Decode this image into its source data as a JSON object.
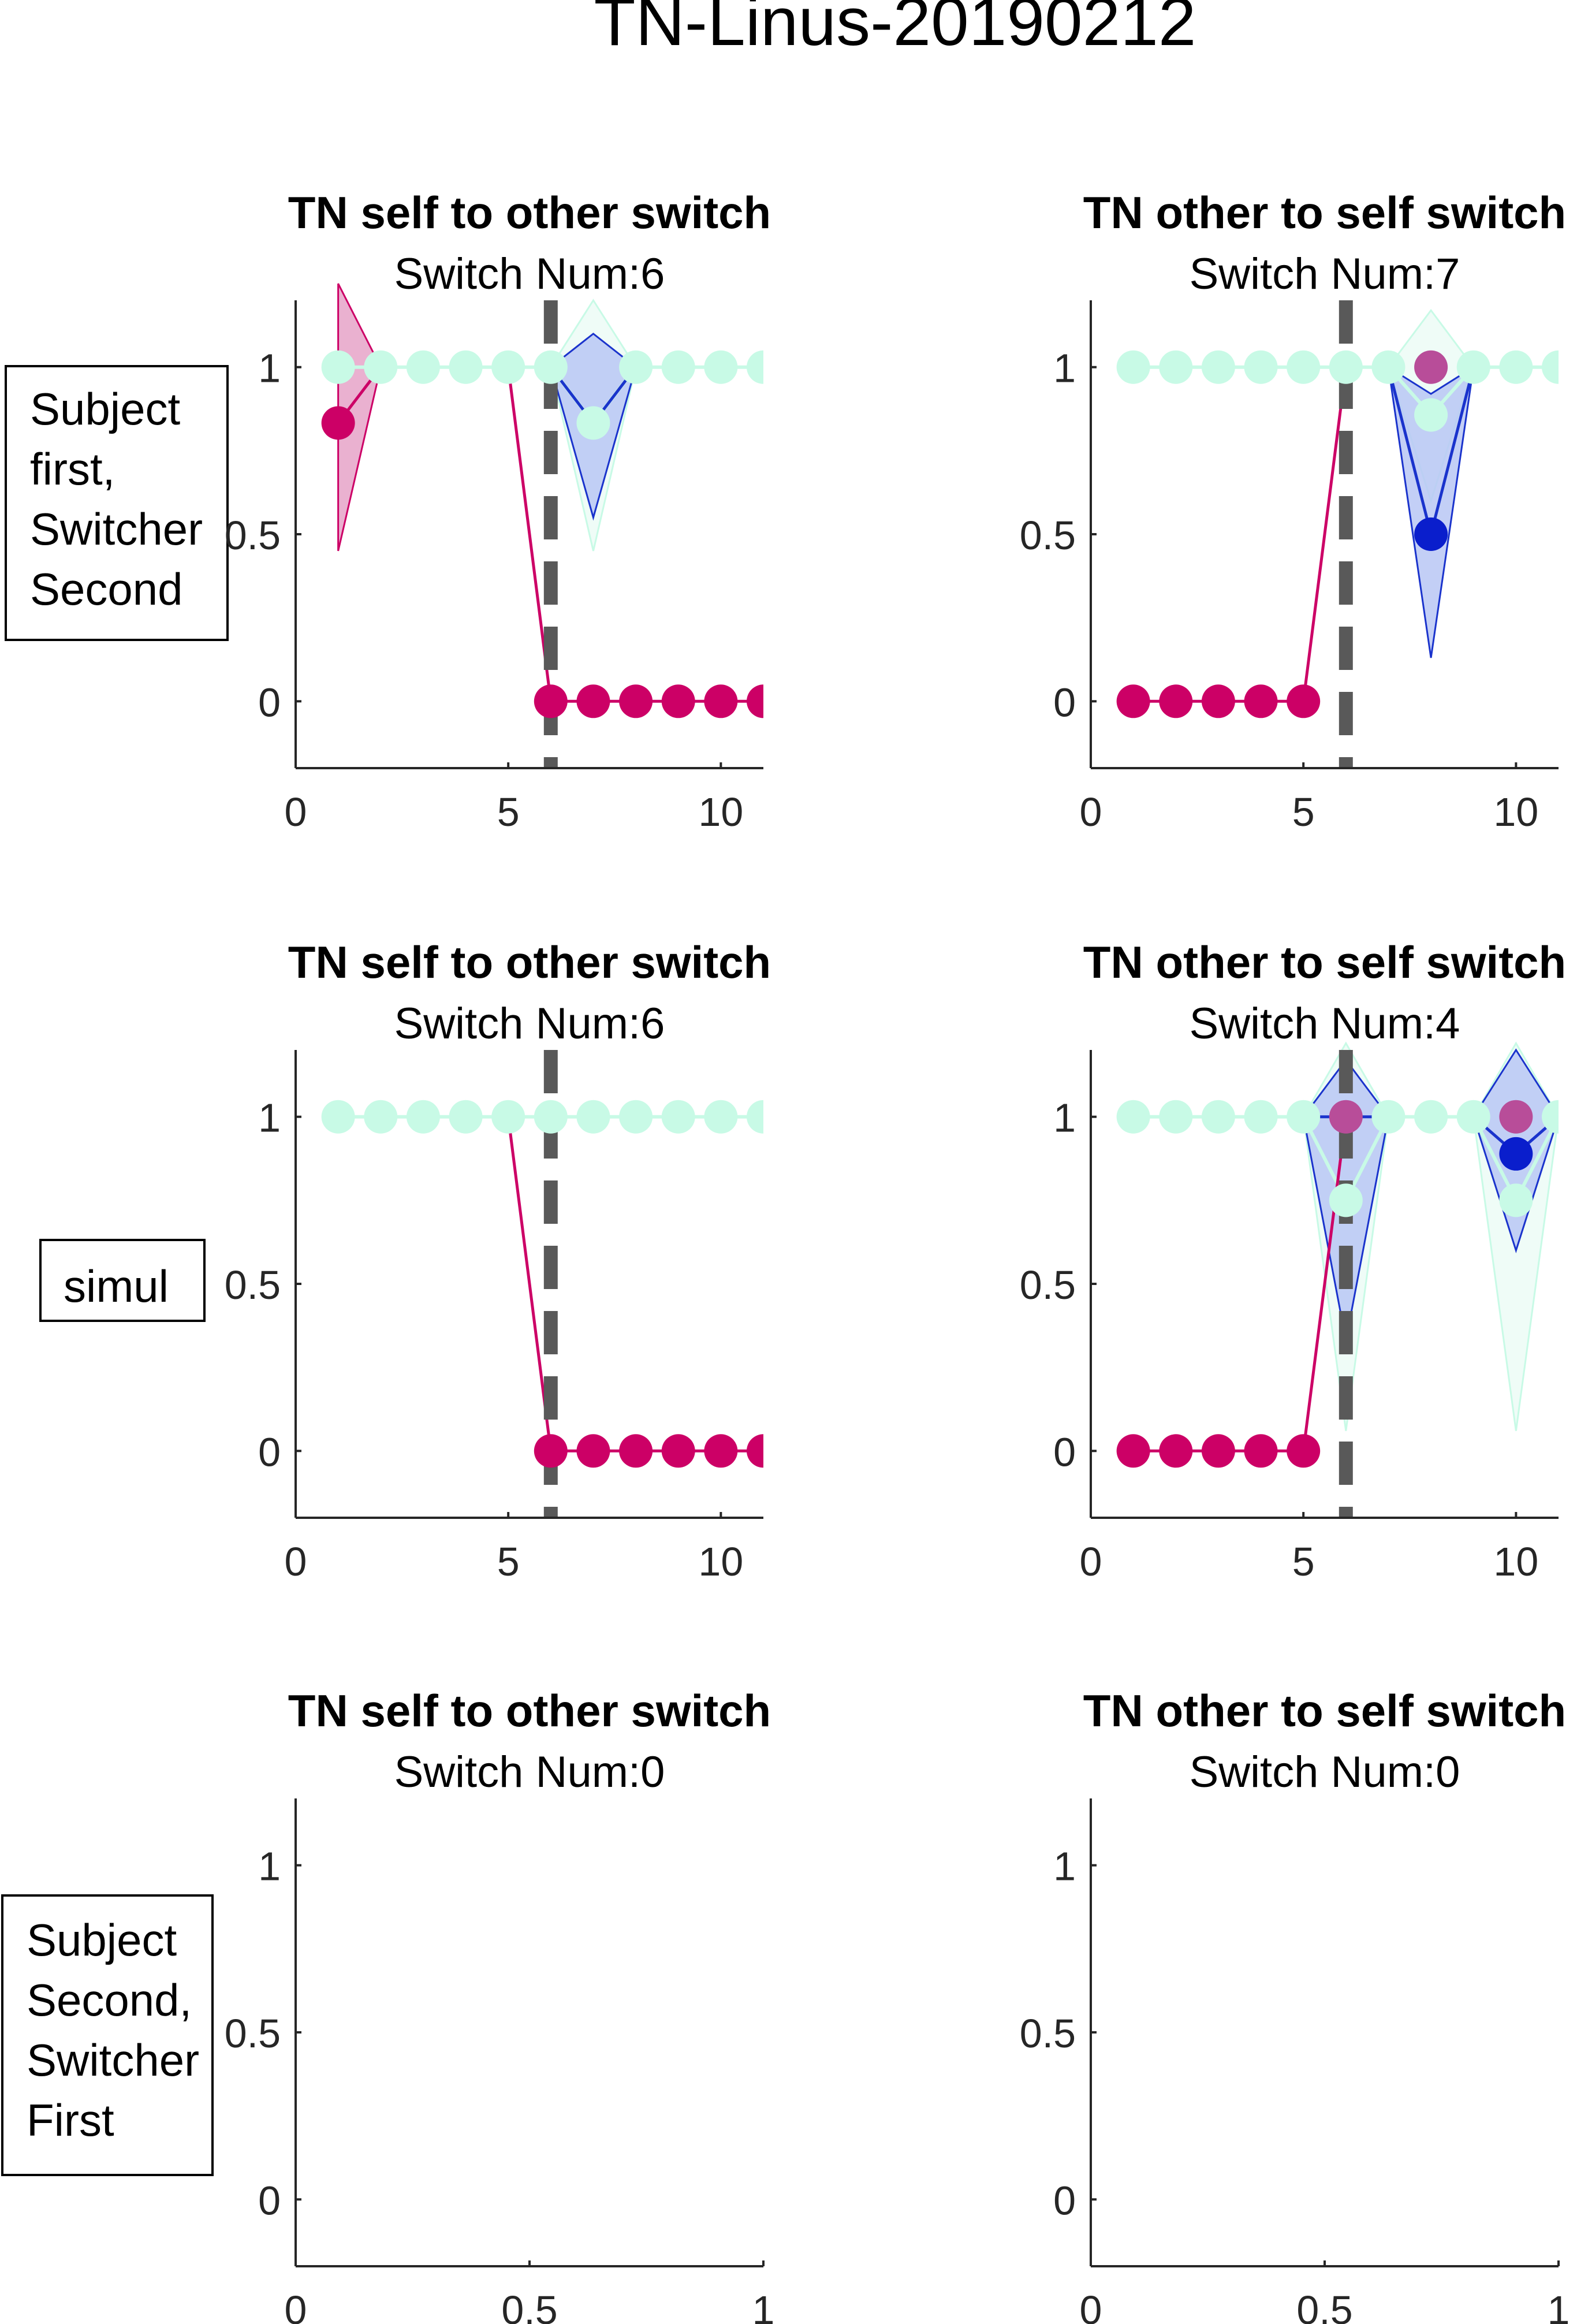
{
  "figure_title": "TN-Linus-20190212",
  "colors": {
    "self_line": "#cc0066",
    "self_fill": "#e6a3c8",
    "other_fill": "#b8c7f5",
    "other_line": "#1a33cc",
    "other_dot": "#0a1ecc",
    "partner": "#c8fae6",
    "partner_fill": "#e8fbf4",
    "overlap_dot": "#b84d99",
    "switch_line": "#595959",
    "axis": "#262626"
  },
  "row_labels": [
    {
      "lines": [
        "Subject",
        "first,",
        "Switcher",
        "Second"
      ]
    },
    {
      "lines": [
        "simul"
      ]
    },
    {
      "lines": [
        "Subject",
        "Second,",
        "Switcher",
        "First"
      ]
    }
  ],
  "chart_data": [
    {
      "type": "line",
      "row": 0,
      "col": 0,
      "title": "TN self to other switch",
      "subtitle": "Switch Num:6",
      "xlim": [
        0,
        11
      ],
      "ylim": [
        -0.2,
        1.2
      ],
      "xticks": [
        "0",
        "5",
        "10"
      ],
      "xtick_values": [
        0,
        5,
        10
      ],
      "yticks": [
        "0",
        "0.5",
        "1"
      ],
      "ytick_values": [
        0,
        0.5,
        1
      ],
      "switch_x": 6,
      "series": [
        {
          "role": "self",
          "x": [
            1,
            2,
            null,
            5,
            6,
            7,
            8,
            9,
            10,
            11
          ],
          "y": [
            0.833,
            1,
            null,
            1,
            0,
            0,
            0,
            0,
            0,
            0
          ],
          "markers": [
            1,
            6,
            7,
            8,
            9,
            10,
            11
          ],
          "band": {
            "x": [
              1,
              2
            ],
            "lo": [
              0.45,
              1
            ],
            "hi": [
              1.25,
              1
            ]
          }
        },
        {
          "role": "other",
          "x": [
            6,
            7,
            8
          ],
          "y": [
            1,
            0.833,
            1
          ],
          "markers": [],
          "band": {
            "x": [
              6,
              7,
              8
            ],
            "lo": [
              1,
              0.55,
              1
            ],
            "hi": [
              1,
              1.1,
              1
            ]
          }
        },
        {
          "role": "partner",
          "x": [
            1,
            2,
            3,
            4,
            5,
            6,
            7,
            8,
            9,
            10,
            11
          ],
          "y": [
            1,
            1,
            1,
            1,
            1,
            1,
            0.833,
            1,
            1,
            1,
            1
          ],
          "markers": [
            1,
            2,
            3,
            4,
            5,
            6,
            7,
            8,
            9,
            10,
            11
          ],
          "band": {
            "x": [
              6,
              7,
              8
            ],
            "lo": [
              1,
              0.45,
              1
            ],
            "hi": [
              1,
              1.2,
              1
            ]
          }
        }
      ],
      "overlap": []
    },
    {
      "type": "line",
      "row": 0,
      "col": 1,
      "title": "TN other to self switch",
      "subtitle": "Switch Num:7",
      "xlim": [
        0,
        11
      ],
      "ylim": [
        -0.2,
        1.2
      ],
      "xticks": [
        "0",
        "5",
        "10"
      ],
      "xtick_values": [
        0,
        5,
        10
      ],
      "yticks": [
        "0",
        "0.5",
        "1"
      ],
      "ytick_values": [
        0,
        0.5,
        1
      ],
      "switch_x": 6,
      "series": [
        {
          "role": "self",
          "x": [
            1,
            2,
            3,
            4,
            5,
            6
          ],
          "y": [
            0,
            0,
            0,
            0,
            0,
            1
          ],
          "markers": [
            1,
            2,
            3,
            4,
            5
          ],
          "band": null
        },
        {
          "role": "other",
          "x": [
            7,
            8,
            9
          ],
          "y": [
            1,
            0.5,
            1
          ],
          "markers": [
            8
          ],
          "band": {
            "x": [
              7,
              8,
              9
            ],
            "lo": [
              1,
              0.13,
              1
            ],
            "hi": [
              1,
              0.92,
              1
            ]
          }
        },
        {
          "role": "partner",
          "x": [
            1,
            2,
            3,
            4,
            5,
            6,
            7,
            8,
            9,
            10,
            11
          ],
          "y": [
            1,
            1,
            1,
            1,
            1,
            1,
            1,
            0.857,
            1,
            1,
            1
          ],
          "markers": [
            1,
            2,
            3,
            4,
            5,
            6,
            7,
            8,
            9,
            10,
            11
          ],
          "band": {
            "x": [
              7,
              8,
              9
            ],
            "lo": [
              1,
              0.6,
              1
            ],
            "hi": [
              1,
              1.17,
              1
            ]
          }
        }
      ],
      "overlap": [
        {
          "x": 8,
          "y": 1
        }
      ]
    },
    {
      "type": "line",
      "row": 1,
      "col": 0,
      "title": "TN self to other switch",
      "subtitle": "Switch Num:6",
      "xlim": [
        0,
        11
      ],
      "ylim": [
        -0.2,
        1.2
      ],
      "xticks": [
        "0",
        "5",
        "10"
      ],
      "xtick_values": [
        0,
        5,
        10
      ],
      "yticks": [
        "0",
        "0.5",
        "1"
      ],
      "ytick_values": [
        0,
        0.5,
        1
      ],
      "switch_x": 6,
      "series": [
        {
          "role": "self",
          "x": [
            5,
            6,
            7,
            8,
            9,
            10,
            11
          ],
          "y": [
            1,
            0,
            0,
            0,
            0,
            0,
            0
          ],
          "markers": [
            6,
            7,
            8,
            9,
            10,
            11
          ],
          "band": null
        },
        {
          "role": "partner",
          "x": [
            1,
            2,
            3,
            4,
            5,
            6,
            7,
            8,
            9,
            10,
            11
          ],
          "y": [
            1,
            1,
            1,
            1,
            1,
            1,
            1,
            1,
            1,
            1,
            1
          ],
          "markers": [
            1,
            2,
            3,
            4,
            5,
            6,
            7,
            8,
            9,
            10,
            11
          ],
          "band": null
        }
      ],
      "overlap": []
    },
    {
      "type": "line",
      "row": 1,
      "col": 1,
      "title": "TN other to self switch",
      "subtitle": "Switch Num:4",
      "xlim": [
        0,
        11
      ],
      "ylim": [
        -0.2,
        1.2
      ],
      "xticks": [
        "0",
        "5",
        "10"
      ],
      "xtick_values": [
        0,
        5,
        10
      ],
      "yticks": [
        "0",
        "0.5",
        "1"
      ],
      "ytick_values": [
        0,
        0.5,
        1
      ],
      "switch_x": 6,
      "series": [
        {
          "role": "self",
          "x": [
            1,
            2,
            3,
            4,
            5,
            6
          ],
          "y": [
            0,
            0,
            0,
            0,
            0,
            1
          ],
          "markers": [
            1,
            2,
            3,
            4,
            5
          ],
          "band": null
        },
        {
          "role": "other",
          "x": [
            5,
            6,
            7,
            null,
            9,
            10,
            11
          ],
          "y": [
            1,
            1,
            1,
            null,
            1,
            0.889,
            1
          ],
          "markers": [
            10
          ],
          "band": {
            "x": [
              5,
              6,
              7,
              9,
              10,
              11
            ],
            "lo": [
              1,
              0.33,
              1,
              1,
              0.6,
              1
            ],
            "hi": [
              1,
              1.17,
              1,
              1,
              1.2,
              1
            ]
          }
        },
        {
          "role": "partner",
          "x": [
            1,
            2,
            3,
            4,
            5,
            6,
            7,
            8,
            9,
            10,
            11
          ],
          "y": [
            1,
            1,
            1,
            1,
            1,
            0.75,
            1,
            1,
            1,
            0.75,
            1
          ],
          "markers": [
            1,
            2,
            3,
            4,
            5,
            6,
            7,
            8,
            9,
            10,
            11
          ],
          "band": {
            "x": [
              5,
              6,
              7,
              9,
              10,
              11
            ],
            "lo": [
              1,
              0.06,
              1,
              1,
              0.06,
              1
            ],
            "hi": [
              1,
              1.22,
              1,
              1,
              1.22,
              1
            ]
          }
        }
      ],
      "overlap": [
        {
          "x": 6,
          "y": 1
        },
        {
          "x": 10,
          "y": 1
        }
      ]
    },
    {
      "type": "line",
      "row": 2,
      "col": 0,
      "title": "TN self to other switch",
      "subtitle": "Switch Num:0",
      "xlim": [
        0,
        1
      ],
      "ylim": [
        -0.2,
        1.2
      ],
      "xticks": [
        "0",
        "0.5",
        "1"
      ],
      "xtick_values": [
        0,
        0.5,
        1
      ],
      "yticks": [
        "0",
        "0.5",
        "1"
      ],
      "ytick_values": [
        0,
        0.5,
        1
      ],
      "switch_x": null,
      "series": [],
      "overlap": []
    },
    {
      "type": "line",
      "row": 2,
      "col": 1,
      "title": "TN other to self switch",
      "subtitle": "Switch Num:0",
      "xlim": [
        0,
        1
      ],
      "ylim": [
        -0.2,
        1.2
      ],
      "xticks": [
        "0",
        "0.5",
        "1"
      ],
      "xtick_values": [
        0,
        0.5,
        1
      ],
      "yticks": [
        "0",
        "0.5",
        "1"
      ],
      "ytick_values": [
        0,
        0.5,
        1
      ],
      "switch_x": null,
      "series": [],
      "overlap": []
    }
  ]
}
